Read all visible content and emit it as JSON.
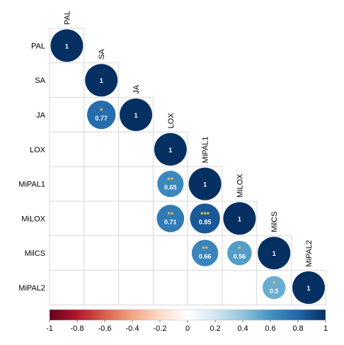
{
  "chart_data": {
    "type": "heatmap",
    "subtype": "correlation-matrix-lower-triangle",
    "variables": [
      "PAL",
      "SA",
      "JA",
      "LOX",
      "MiPAL1",
      "MiLOX",
      "MilCS",
      "MiPAL2"
    ],
    "cells": [
      {
        "row": "PAL",
        "col": "PAL",
        "value": 1,
        "label": "1",
        "stars": ""
      },
      {
        "row": "SA",
        "col": "SA",
        "value": 1,
        "label": "1",
        "stars": ""
      },
      {
        "row": "JA",
        "col": "SA",
        "value": 0.77,
        "label": "0.77",
        "stars": "*"
      },
      {
        "row": "JA",
        "col": "JA",
        "value": 1,
        "label": "1",
        "stars": ""
      },
      {
        "row": "LOX",
        "col": "LOX",
        "value": 1,
        "label": "1",
        "stars": ""
      },
      {
        "row": "MiPAL1",
        "col": "LOX",
        "value": 0.65,
        "label": "0.65",
        "stars": "**"
      },
      {
        "row": "MiPAL1",
        "col": "MiPAL1",
        "value": 1,
        "label": "1",
        "stars": ""
      },
      {
        "row": "MiLOX",
        "col": "LOX",
        "value": 0.71,
        "label": "0.71",
        "stars": "**"
      },
      {
        "row": "MiLOX",
        "col": "MiPAL1",
        "value": 0.85,
        "label": "0.85",
        "stars": "***"
      },
      {
        "row": "MiLOX",
        "col": "MiLOX",
        "value": 1,
        "label": "1",
        "stars": ""
      },
      {
        "row": "MilCS",
        "col": "MiPAL1",
        "value": 0.66,
        "label": "0.66",
        "stars": "**"
      },
      {
        "row": "MilCS",
        "col": "MiLOX",
        "value": 0.56,
        "label": "0.56",
        "stars": "*"
      },
      {
        "row": "MilCS",
        "col": "MilCS",
        "value": 1,
        "label": "1",
        "stars": ""
      },
      {
        "row": "MiPAL2",
        "col": "MilCS",
        "value": 0.5,
        "label": "0.5",
        "stars": "*"
      },
      {
        "row": "MiPAL2",
        "col": "MiPAL2",
        "value": 1,
        "label": "1",
        "stars": ""
      }
    ],
    "colorbar": {
      "range": [
        -1,
        1
      ],
      "ticks": [
        "-1",
        "-0.8",
        "-0.6",
        "-0.4",
        "-0.2",
        "0",
        "0.2",
        "0.4",
        "0.6",
        "0.8",
        "1"
      ],
      "tick_values": [
        -1,
        -0.8,
        -0.6,
        -0.4,
        -0.2,
        0,
        0.2,
        0.4,
        0.6,
        0.8,
        1
      ],
      "colors": [
        "#67001f",
        "#b2182b",
        "#d6604d",
        "#f4a582",
        "#fddbc7",
        "#ffffff",
        "#d1e5f0",
        "#92c5de",
        "#4393c3",
        "#2166ac",
        "#053061"
      ],
      "placement": "bottom"
    },
    "star_color": "#e8c547",
    "value_label_color": "#ffffff",
    "grid": true
  }
}
